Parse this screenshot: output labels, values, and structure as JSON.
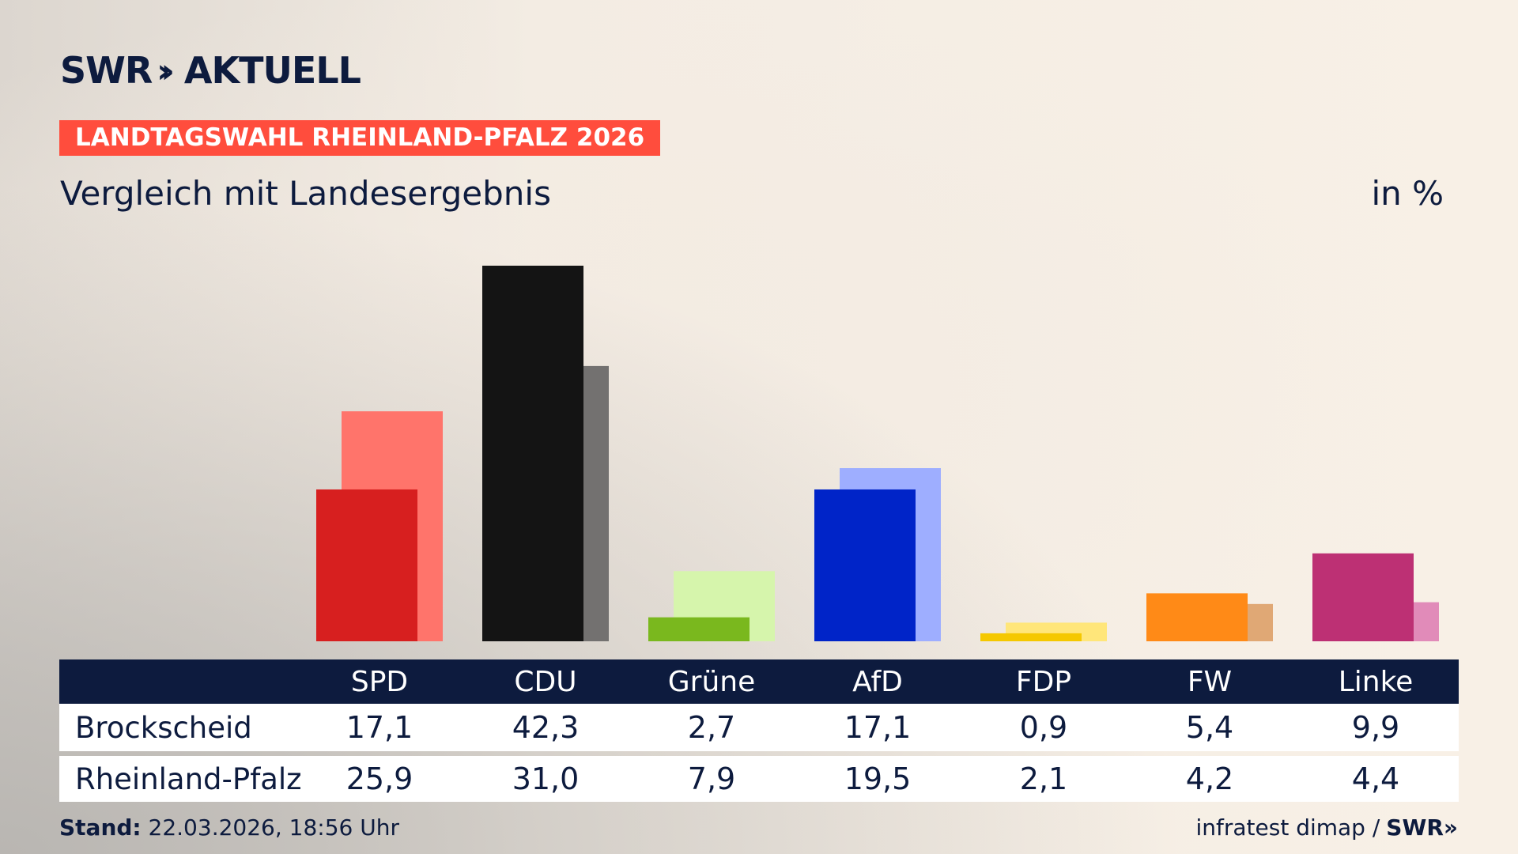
{
  "header": {
    "logo_brand": "SWR",
    "logo_chevrons": "»",
    "logo_word": "AKTUELL",
    "kicker": "LANDTAGSWAHL RHEINLAND-PFALZ 2026",
    "subtitle": "Vergleich mit Landesergebnis",
    "unit": "in %"
  },
  "chart_data": {
    "type": "bar",
    "categories": [
      "SPD",
      "CDU",
      "Grüne",
      "AfD",
      "FDP",
      "FW",
      "Linke"
    ],
    "series": [
      {
        "name": "Brockscheid",
        "values": [
          17.1,
          42.3,
          2.7,
          17.1,
          0.9,
          5.4,
          9.9
        ]
      },
      {
        "name": "Rheinland-Pfalz",
        "values": [
          25.9,
          31.0,
          7.9,
          19.5,
          2.1,
          4.2,
          4.4
        ]
      }
    ],
    "colors_primary": [
      "#d71f1f",
      "#141414",
      "#7ab81e",
      "#0024c8",
      "#f5c800",
      "#ff8a17",
      "#bd3074"
    ],
    "colors_secondary": [
      "#ff746b",
      "#737170",
      "#d6f5ac",
      "#9eaeff",
      "#ffe67a",
      "#e0a875",
      "#e18bb9"
    ],
    "ylim": [
      0,
      45
    ],
    "grid": false
  },
  "table": {
    "headers": [
      "SPD",
      "CDU",
      "Grüne",
      "AfD",
      "FDP",
      "FW",
      "Linke"
    ],
    "rows": [
      {
        "label": "Brockscheid",
        "values": [
          "17,1",
          "42,3",
          "2,7",
          "17,1",
          "0,9",
          "5,4",
          "9,9"
        ]
      },
      {
        "label": "Rheinland-Pfalz",
        "values": [
          "25,9",
          "31,0",
          "7,9",
          "19,5",
          "2,1",
          "4,2",
          "4,4"
        ]
      }
    ]
  },
  "footer": {
    "stand_label": "Stand:",
    "stand_value": "22.03.2026, 18:56 Uhr",
    "source": "infratest dimap /",
    "brand": "SWR»"
  }
}
